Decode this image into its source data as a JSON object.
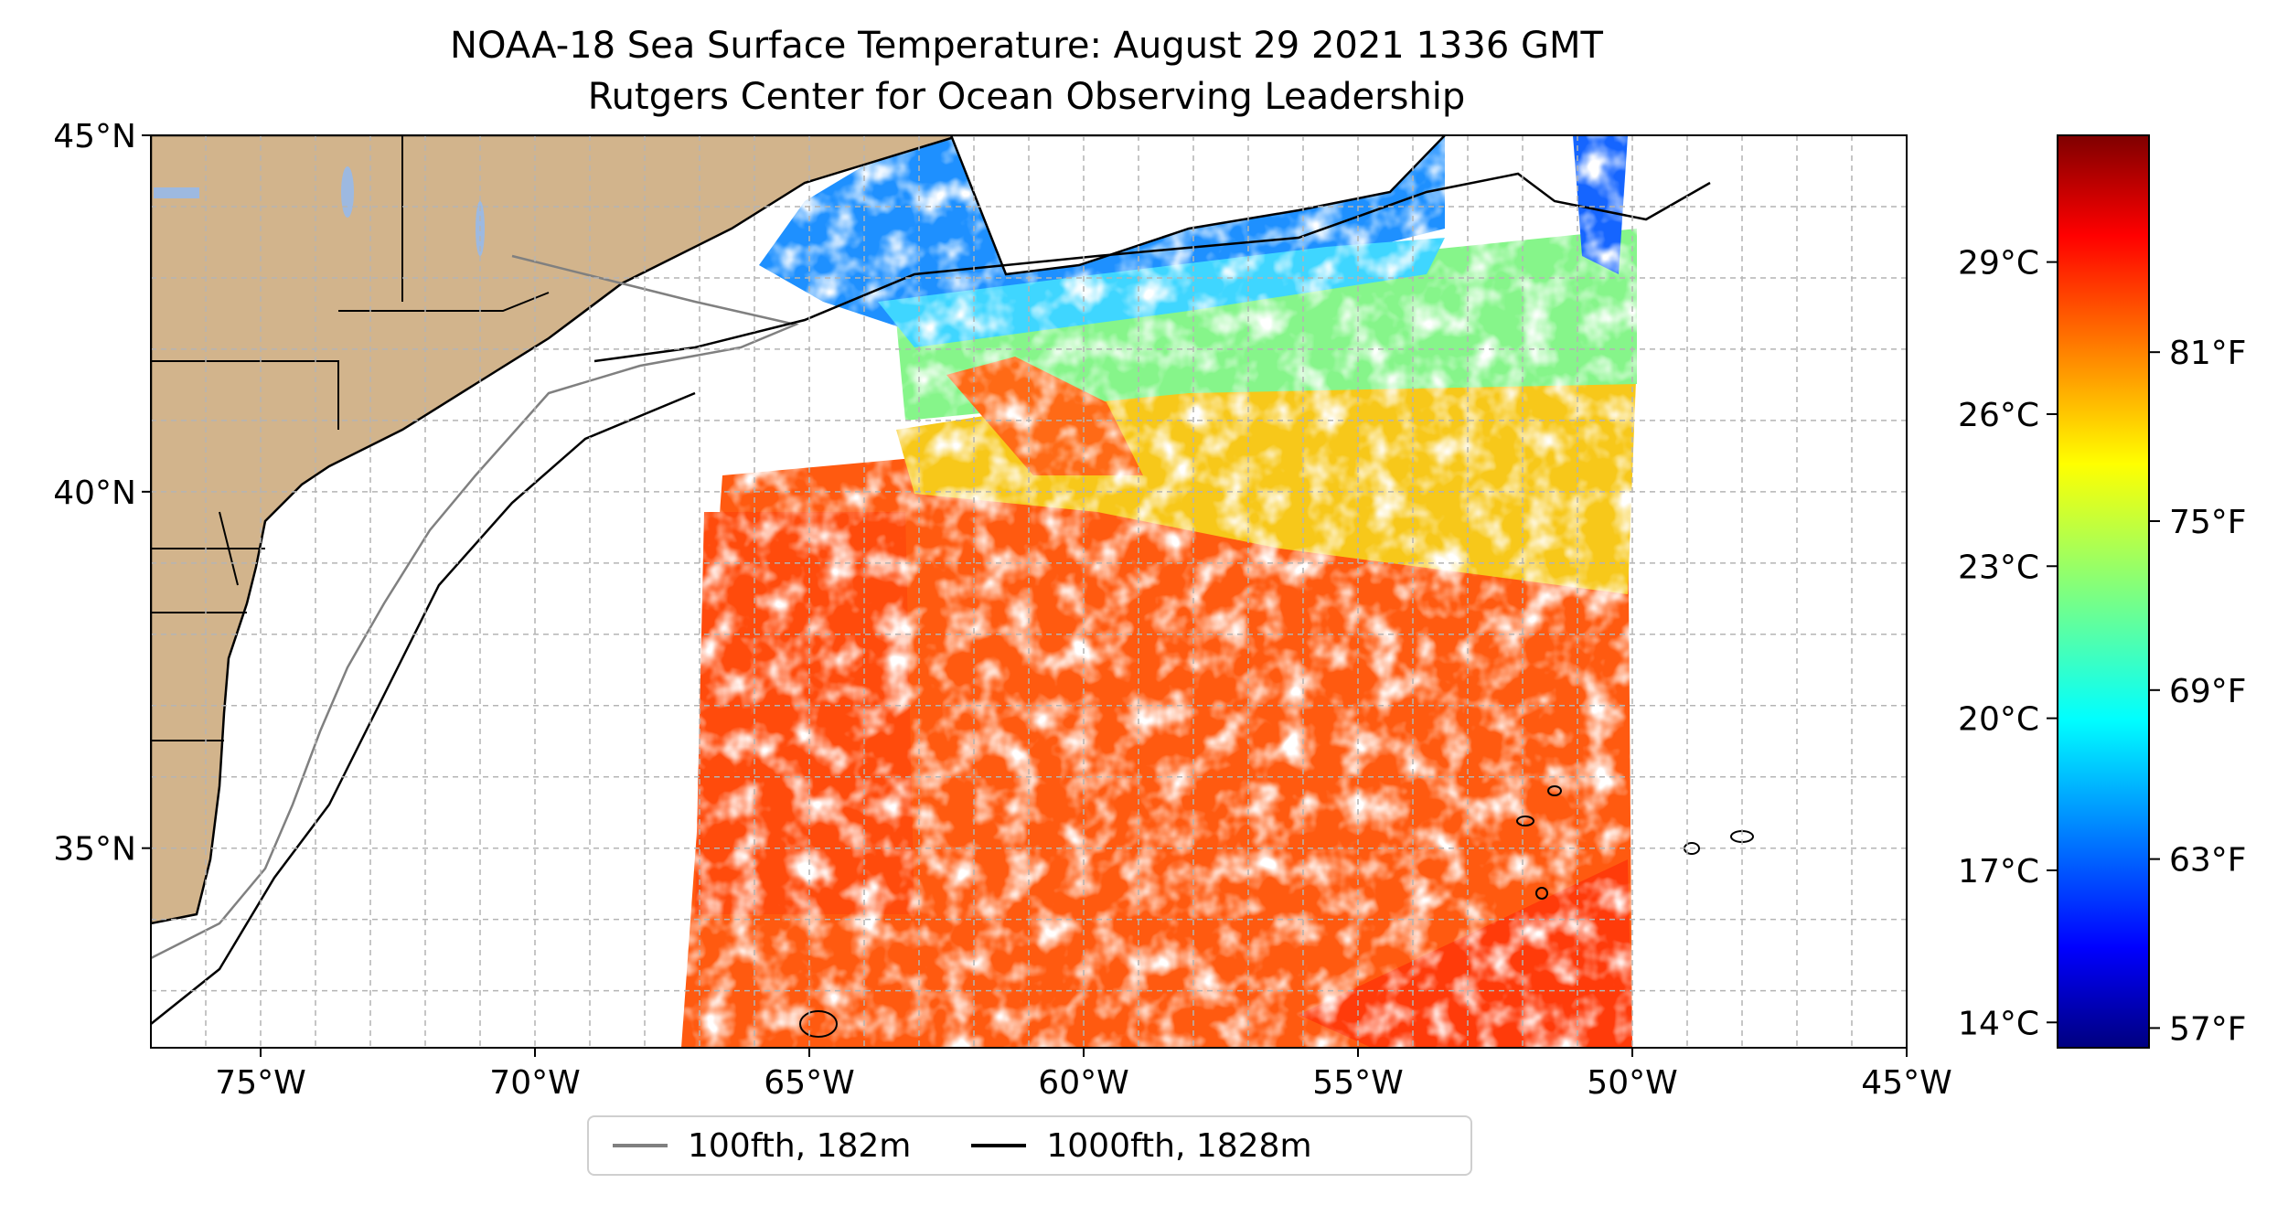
{
  "title": {
    "line1": "NOAA-18 Sea Surface Temperature: August 29 2021 1336 GMT",
    "line2": "Rutgers Center for Ocean Observing Leadership"
  },
  "map": {
    "extent": {
      "lon": [
        -77,
        -45
      ],
      "lat": [
        32.2,
        45
      ]
    },
    "lon_ticks": [
      {
        "value": -75,
        "label": "75°W"
      },
      {
        "value": -70,
        "label": "70°W"
      },
      {
        "value": -65,
        "label": "65°W"
      },
      {
        "value": -60,
        "label": "60°W"
      },
      {
        "value": -55,
        "label": "55°W"
      },
      {
        "value": -50,
        "label": "50°W"
      },
      {
        "value": -45,
        "label": "45°W"
      }
    ],
    "lat_ticks": [
      {
        "value": 45,
        "label": "45°N"
      },
      {
        "value": 40,
        "label": "40°N"
      },
      {
        "value": 35,
        "label": "35°N"
      }
    ],
    "gridlines": true,
    "land_color": "#d2b48c",
    "lake_color": "#9db9e0",
    "coastline_color": "#000000"
  },
  "colorbar": {
    "colormap": "jet",
    "range_c": [
      13.5,
      31.5
    ],
    "celsius_ticks": [
      {
        "value": 29,
        "label": "29°C"
      },
      {
        "value": 26,
        "label": "26°C"
      },
      {
        "value": 23,
        "label": "23°C"
      },
      {
        "value": 20,
        "label": "20°C"
      },
      {
        "value": 17,
        "label": "17°C"
      },
      {
        "value": 14,
        "label": "14°C"
      }
    ],
    "fahrenheit_ticks": [
      {
        "value": 81,
        "label": "81°F"
      },
      {
        "value": 75,
        "label": "75°F"
      },
      {
        "value": 69,
        "label": "69°F"
      },
      {
        "value": 63,
        "label": "63°F"
      },
      {
        "value": 57,
        "label": "57°F"
      }
    ]
  },
  "legend": {
    "items": [
      {
        "label": "100fth, 182m",
        "color": "#808080"
      },
      {
        "label": "1000fth, 1828m",
        "color": "#000000"
      }
    ]
  }
}
